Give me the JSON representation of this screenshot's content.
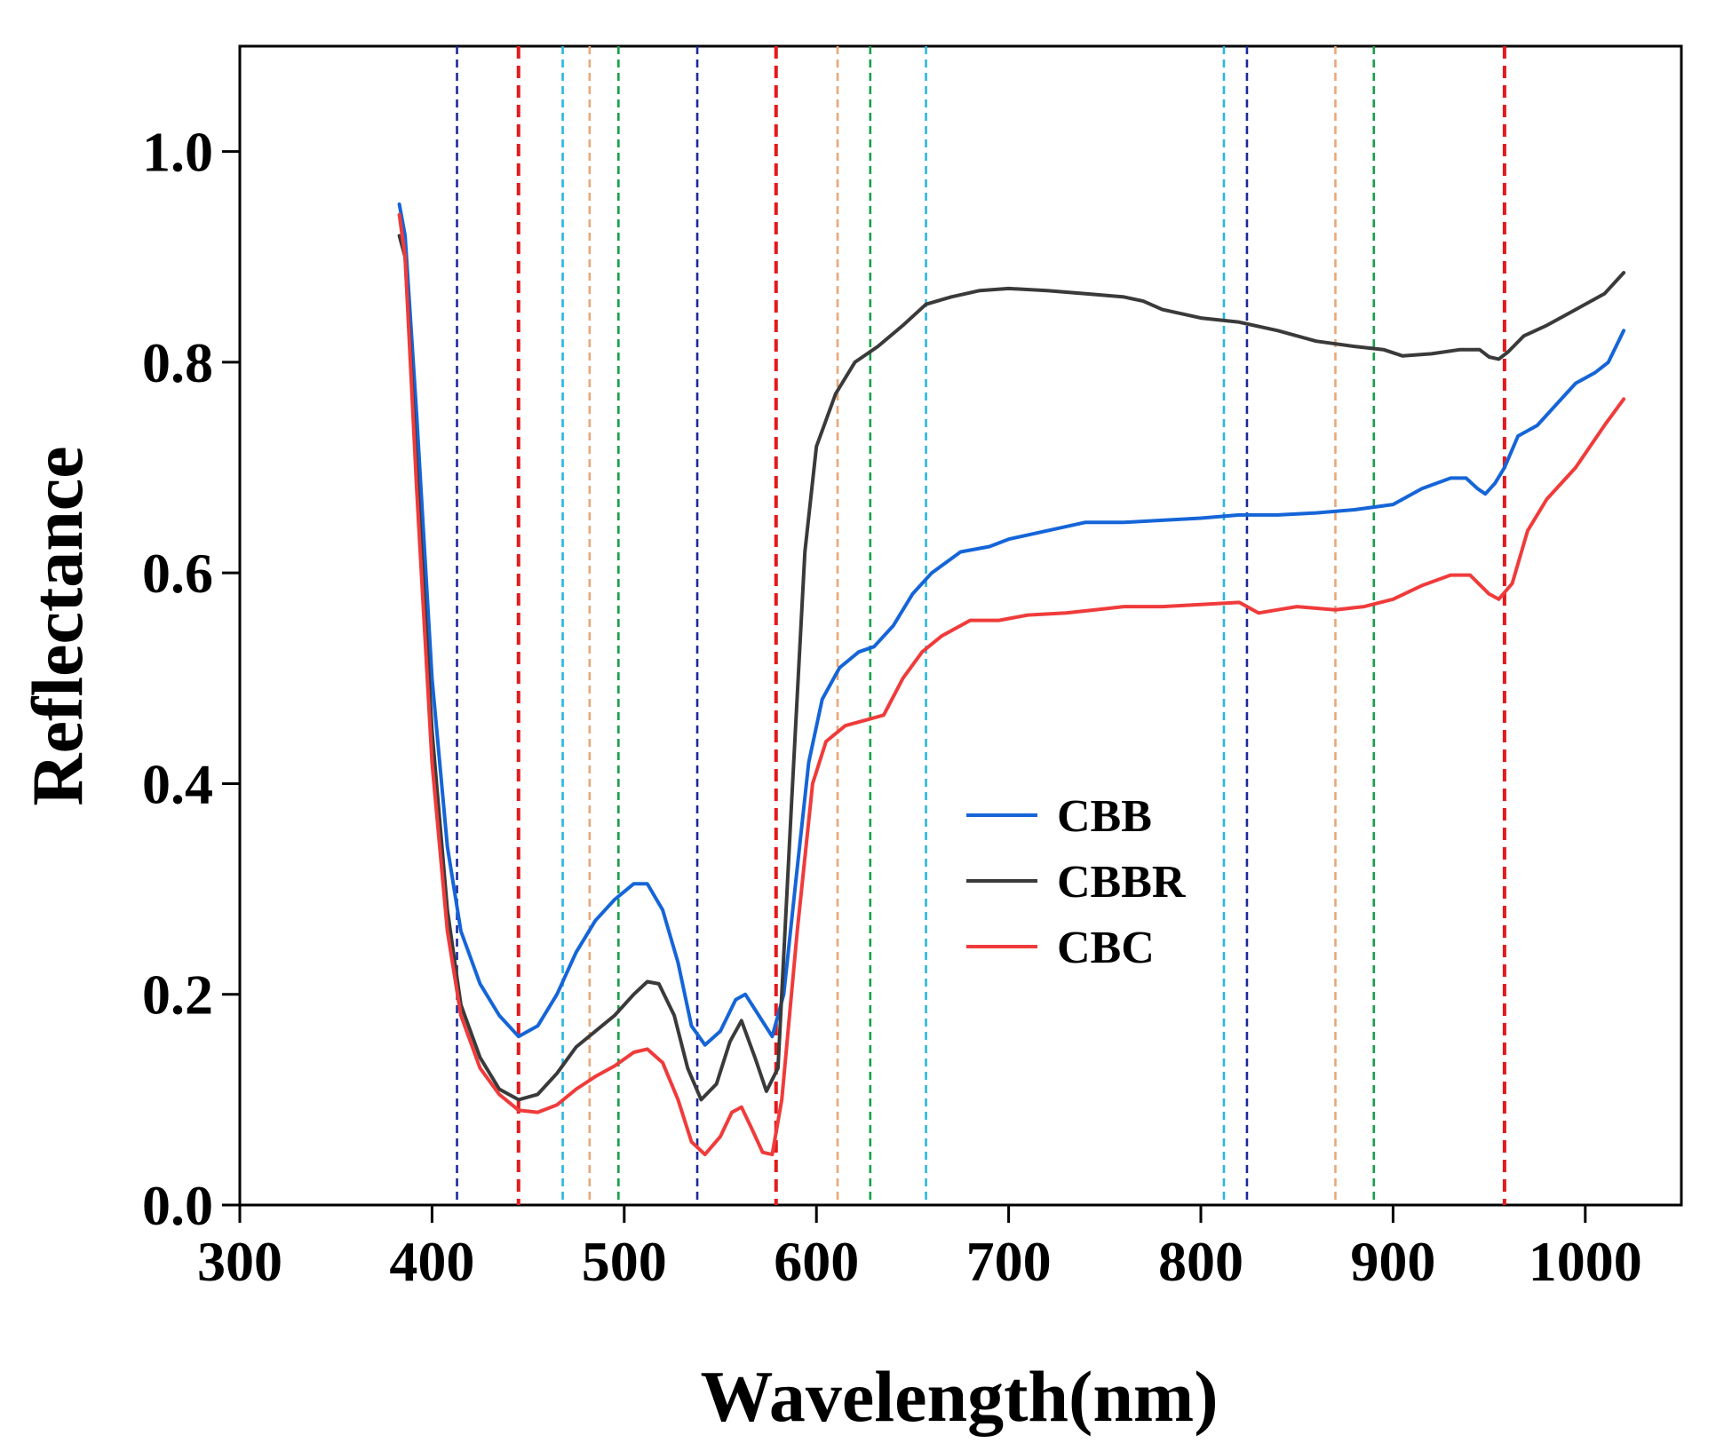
{
  "chart_data": {
    "type": "line",
    "title": "",
    "xlabel": "Wavelength(nm)",
    "ylabel": "Reflectance",
    "xlim": [
      300,
      1050
    ],
    "ylim": [
      0.0,
      1.1
    ],
    "xticks": [
      300,
      400,
      500,
      600,
      700,
      800,
      900,
      1000
    ],
    "xtick_labels": [
      "300",
      "400",
      "500",
      "600",
      "700",
      "800",
      "900",
      "1000"
    ],
    "yticks": [
      0.0,
      0.2,
      0.4,
      0.6,
      0.8,
      1.0
    ],
    "ytick_labels": [
      "0.0",
      "0.2",
      "0.4",
      "0.6",
      "0.8",
      "1.0"
    ],
    "grid": false,
    "legend_position": "center-right",
    "reference_lines": [
      {
        "x": 413,
        "color": "#1c2a9a"
      },
      {
        "x": 445,
        "color": "#e31a1c"
      },
      {
        "x": 468,
        "color": "#29b6e0"
      },
      {
        "x": 482,
        "color": "#e8a878"
      },
      {
        "x": 497,
        "color": "#16a04a"
      },
      {
        "x": 538,
        "color": "#1c2a9a"
      },
      {
        "x": 579,
        "color": "#e31a1c"
      },
      {
        "x": 611,
        "color": "#e8a878"
      },
      {
        "x": 628,
        "color": "#16a04a"
      },
      {
        "x": 657,
        "color": "#29b6e0"
      },
      {
        "x": 812,
        "color": "#29b6e0"
      },
      {
        "x": 824,
        "color": "#1c2a9a"
      },
      {
        "x": 870,
        "color": "#e8a878"
      },
      {
        "x": 890,
        "color": "#16a04a"
      },
      {
        "x": 958,
        "color": "#e31a1c"
      }
    ],
    "series": [
      {
        "name": "CBB",
        "color": "#1565d8",
        "points": [
          [
            383,
            0.95
          ],
          [
            386,
            0.92
          ],
          [
            392,
            0.75
          ],
          [
            400,
            0.5
          ],
          [
            408,
            0.34
          ],
          [
            415,
            0.26
          ],
          [
            425,
            0.21
          ],
          [
            435,
            0.18
          ],
          [
            445,
            0.16
          ],
          [
            455,
            0.17
          ],
          [
            465,
            0.2
          ],
          [
            475,
            0.24
          ],
          [
            485,
            0.27
          ],
          [
            495,
            0.29
          ],
          [
            505,
            0.305
          ],
          [
            512,
            0.305
          ],
          [
            520,
            0.28
          ],
          [
            528,
            0.23
          ],
          [
            535,
            0.17
          ],
          [
            542,
            0.152
          ],
          [
            550,
            0.165
          ],
          [
            558,
            0.195
          ],
          [
            563,
            0.2
          ],
          [
            570,
            0.18
          ],
          [
            577,
            0.16
          ],
          [
            583,
            0.2
          ],
          [
            590,
            0.32
          ],
          [
            596,
            0.42
          ],
          [
            603,
            0.48
          ],
          [
            612,
            0.51
          ],
          [
            622,
            0.525
          ],
          [
            630,
            0.53
          ],
          [
            640,
            0.55
          ],
          [
            650,
            0.58
          ],
          [
            660,
            0.6
          ],
          [
            675,
            0.62
          ],
          [
            690,
            0.625
          ],
          [
            700,
            0.632
          ],
          [
            720,
            0.64
          ],
          [
            740,
            0.648
          ],
          [
            760,
            0.648
          ],
          [
            780,
            0.65
          ],
          [
            800,
            0.652
          ],
          [
            820,
            0.655
          ],
          [
            840,
            0.655
          ],
          [
            860,
            0.657
          ],
          [
            880,
            0.66
          ],
          [
            900,
            0.665
          ],
          [
            915,
            0.68
          ],
          [
            930,
            0.69
          ],
          [
            938,
            0.69
          ],
          [
            944,
            0.68
          ],
          [
            948,
            0.675
          ],
          [
            953,
            0.685
          ],
          [
            958,
            0.7
          ],
          [
            965,
            0.73
          ],
          [
            975,
            0.74
          ],
          [
            985,
            0.76
          ],
          [
            995,
            0.78
          ],
          [
            1005,
            0.79
          ],
          [
            1012,
            0.8
          ],
          [
            1020,
            0.83
          ]
        ]
      },
      {
        "name": "CBBR",
        "color": "#3a3a3a",
        "points": [
          [
            383,
            0.92
          ],
          [
            386,
            0.9
          ],
          [
            392,
            0.7
          ],
          [
            400,
            0.45
          ],
          [
            408,
            0.28
          ],
          [
            415,
            0.19
          ],
          [
            425,
            0.14
          ],
          [
            435,
            0.11
          ],
          [
            445,
            0.1
          ],
          [
            455,
            0.105
          ],
          [
            465,
            0.125
          ],
          [
            475,
            0.15
          ],
          [
            485,
            0.165
          ],
          [
            495,
            0.18
          ],
          [
            505,
            0.2
          ],
          [
            512,
            0.212
          ],
          [
            518,
            0.21
          ],
          [
            526,
            0.18
          ],
          [
            533,
            0.13
          ],
          [
            540,
            0.1
          ],
          [
            548,
            0.115
          ],
          [
            555,
            0.155
          ],
          [
            561,
            0.175
          ],
          [
            568,
            0.14
          ],
          [
            574,
            0.108
          ],
          [
            580,
            0.13
          ],
          [
            587,
            0.38
          ],
          [
            594,
            0.62
          ],
          [
            600,
            0.72
          ],
          [
            610,
            0.77
          ],
          [
            620,
            0.8
          ],
          [
            632,
            0.815
          ],
          [
            645,
            0.835
          ],
          [
            657,
            0.855
          ],
          [
            670,
            0.862
          ],
          [
            685,
            0.868
          ],
          [
            700,
            0.87
          ],
          [
            720,
            0.868
          ],
          [
            740,
            0.865
          ],
          [
            760,
            0.862
          ],
          [
            770,
            0.858
          ],
          [
            780,
            0.85
          ],
          [
            800,
            0.842
          ],
          [
            820,
            0.838
          ],
          [
            840,
            0.83
          ],
          [
            860,
            0.82
          ],
          [
            880,
            0.815
          ],
          [
            895,
            0.812
          ],
          [
            905,
            0.806
          ],
          [
            920,
            0.808
          ],
          [
            935,
            0.812
          ],
          [
            945,
            0.812
          ],
          [
            950,
            0.805
          ],
          [
            955,
            0.803
          ],
          [
            960,
            0.81
          ],
          [
            968,
            0.825
          ],
          [
            980,
            0.835
          ],
          [
            995,
            0.85
          ],
          [
            1010,
            0.865
          ],
          [
            1020,
            0.885
          ]
        ]
      },
      {
        "name": "CBC",
        "color": "#f03b3b",
        "points": [
          [
            383,
            0.94
          ],
          [
            386,
            0.9
          ],
          [
            392,
            0.68
          ],
          [
            400,
            0.42
          ],
          [
            408,
            0.26
          ],
          [
            415,
            0.18
          ],
          [
            425,
            0.13
          ],
          [
            435,
            0.105
          ],
          [
            445,
            0.09
          ],
          [
            455,
            0.088
          ],
          [
            465,
            0.095
          ],
          [
            475,
            0.11
          ],
          [
            485,
            0.122
          ],
          [
            495,
            0.132
          ],
          [
            505,
            0.145
          ],
          [
            512,
            0.148
          ],
          [
            520,
            0.135
          ],
          [
            528,
            0.1
          ],
          [
            535,
            0.06
          ],
          [
            542,
            0.048
          ],
          [
            550,
            0.065
          ],
          [
            556,
            0.088
          ],
          [
            561,
            0.093
          ],
          [
            567,
            0.07
          ],
          [
            572,
            0.05
          ],
          [
            577,
            0.048
          ],
          [
            582,
            0.1
          ],
          [
            590,
            0.26
          ],
          [
            598,
            0.4
          ],
          [
            605,
            0.44
          ],
          [
            615,
            0.455
          ],
          [
            625,
            0.46
          ],
          [
            635,
            0.465
          ],
          [
            645,
            0.5
          ],
          [
            655,
            0.525
          ],
          [
            665,
            0.54
          ],
          [
            680,
            0.555
          ],
          [
            695,
            0.555
          ],
          [
            710,
            0.56
          ],
          [
            730,
            0.562
          ],
          [
            745,
            0.565
          ],
          [
            760,
            0.568
          ],
          [
            780,
            0.568
          ],
          [
            800,
            0.57
          ],
          [
            820,
            0.572
          ],
          [
            830,
            0.562
          ],
          [
            840,
            0.565
          ],
          [
            850,
            0.568
          ],
          [
            870,
            0.565
          ],
          [
            885,
            0.568
          ],
          [
            900,
            0.575
          ],
          [
            915,
            0.588
          ],
          [
            930,
            0.598
          ],
          [
            940,
            0.598
          ],
          [
            950,
            0.58
          ],
          [
            955,
            0.575
          ],
          [
            962,
            0.59
          ],
          [
            970,
            0.64
          ],
          [
            980,
            0.67
          ],
          [
            995,
            0.7
          ],
          [
            1010,
            0.74
          ],
          [
            1020,
            0.765
          ]
        ]
      }
    ]
  }
}
